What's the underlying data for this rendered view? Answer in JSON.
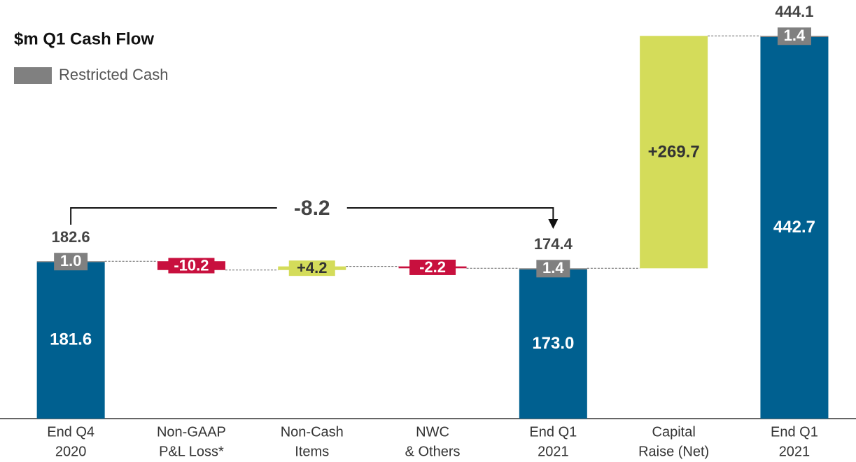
{
  "chart_data": {
    "type": "waterfall",
    "title": "$m Q1 Cash Flow",
    "categories": [
      [
        "End Q4",
        "2020"
      ],
      [
        "Non-GAAP",
        "P&L Loss*"
      ],
      [
        "Non-Cash",
        "Items"
      ],
      [
        "NWC",
        "& Others"
      ],
      [
        "End Q1",
        "2021"
      ],
      [
        "Capital",
        "Raise (Net)"
      ],
      [
        "End Q1",
        "2021"
      ]
    ],
    "series": [
      {
        "color": "#006090",
        "values": [
          181.6,
          null,
          null,
          null,
          173.0,
          null,
          442.7
        ],
        "value_labels": [
          null,
          null,
          null,
          null,
          "173.0",
          null,
          null
        ]
      },
      {
        "name": "Restricted Cash",
        "color": "#808080",
        "values": [
          1.0,
          null,
          null,
          null,
          1.4,
          null,
          1.4
        ],
        "value_labels": [
          "1.0",
          null,
          null,
          null,
          null,
          null,
          null
        ]
      },
      {
        "values": [
          null,
          -10.2,
          4.2,
          -2.2,
          null,
          269.7,
          null
        ],
        "value_labels": [
          null,
          null,
          "+4.2",
          null,
          null,
          "+269.7",
          null
        ],
        "colors": {
          "positive": "#d4dc5a",
          "negative": "#c8103e"
        }
      }
    ],
    "totals": [
      182.6,
      null,
      null,
      null,
      174.4,
      null,
      444.1
    ],
    "bracket": {
      "value": -8.2
    },
    "ylim": [
      0,
      450
    ]
  }
}
